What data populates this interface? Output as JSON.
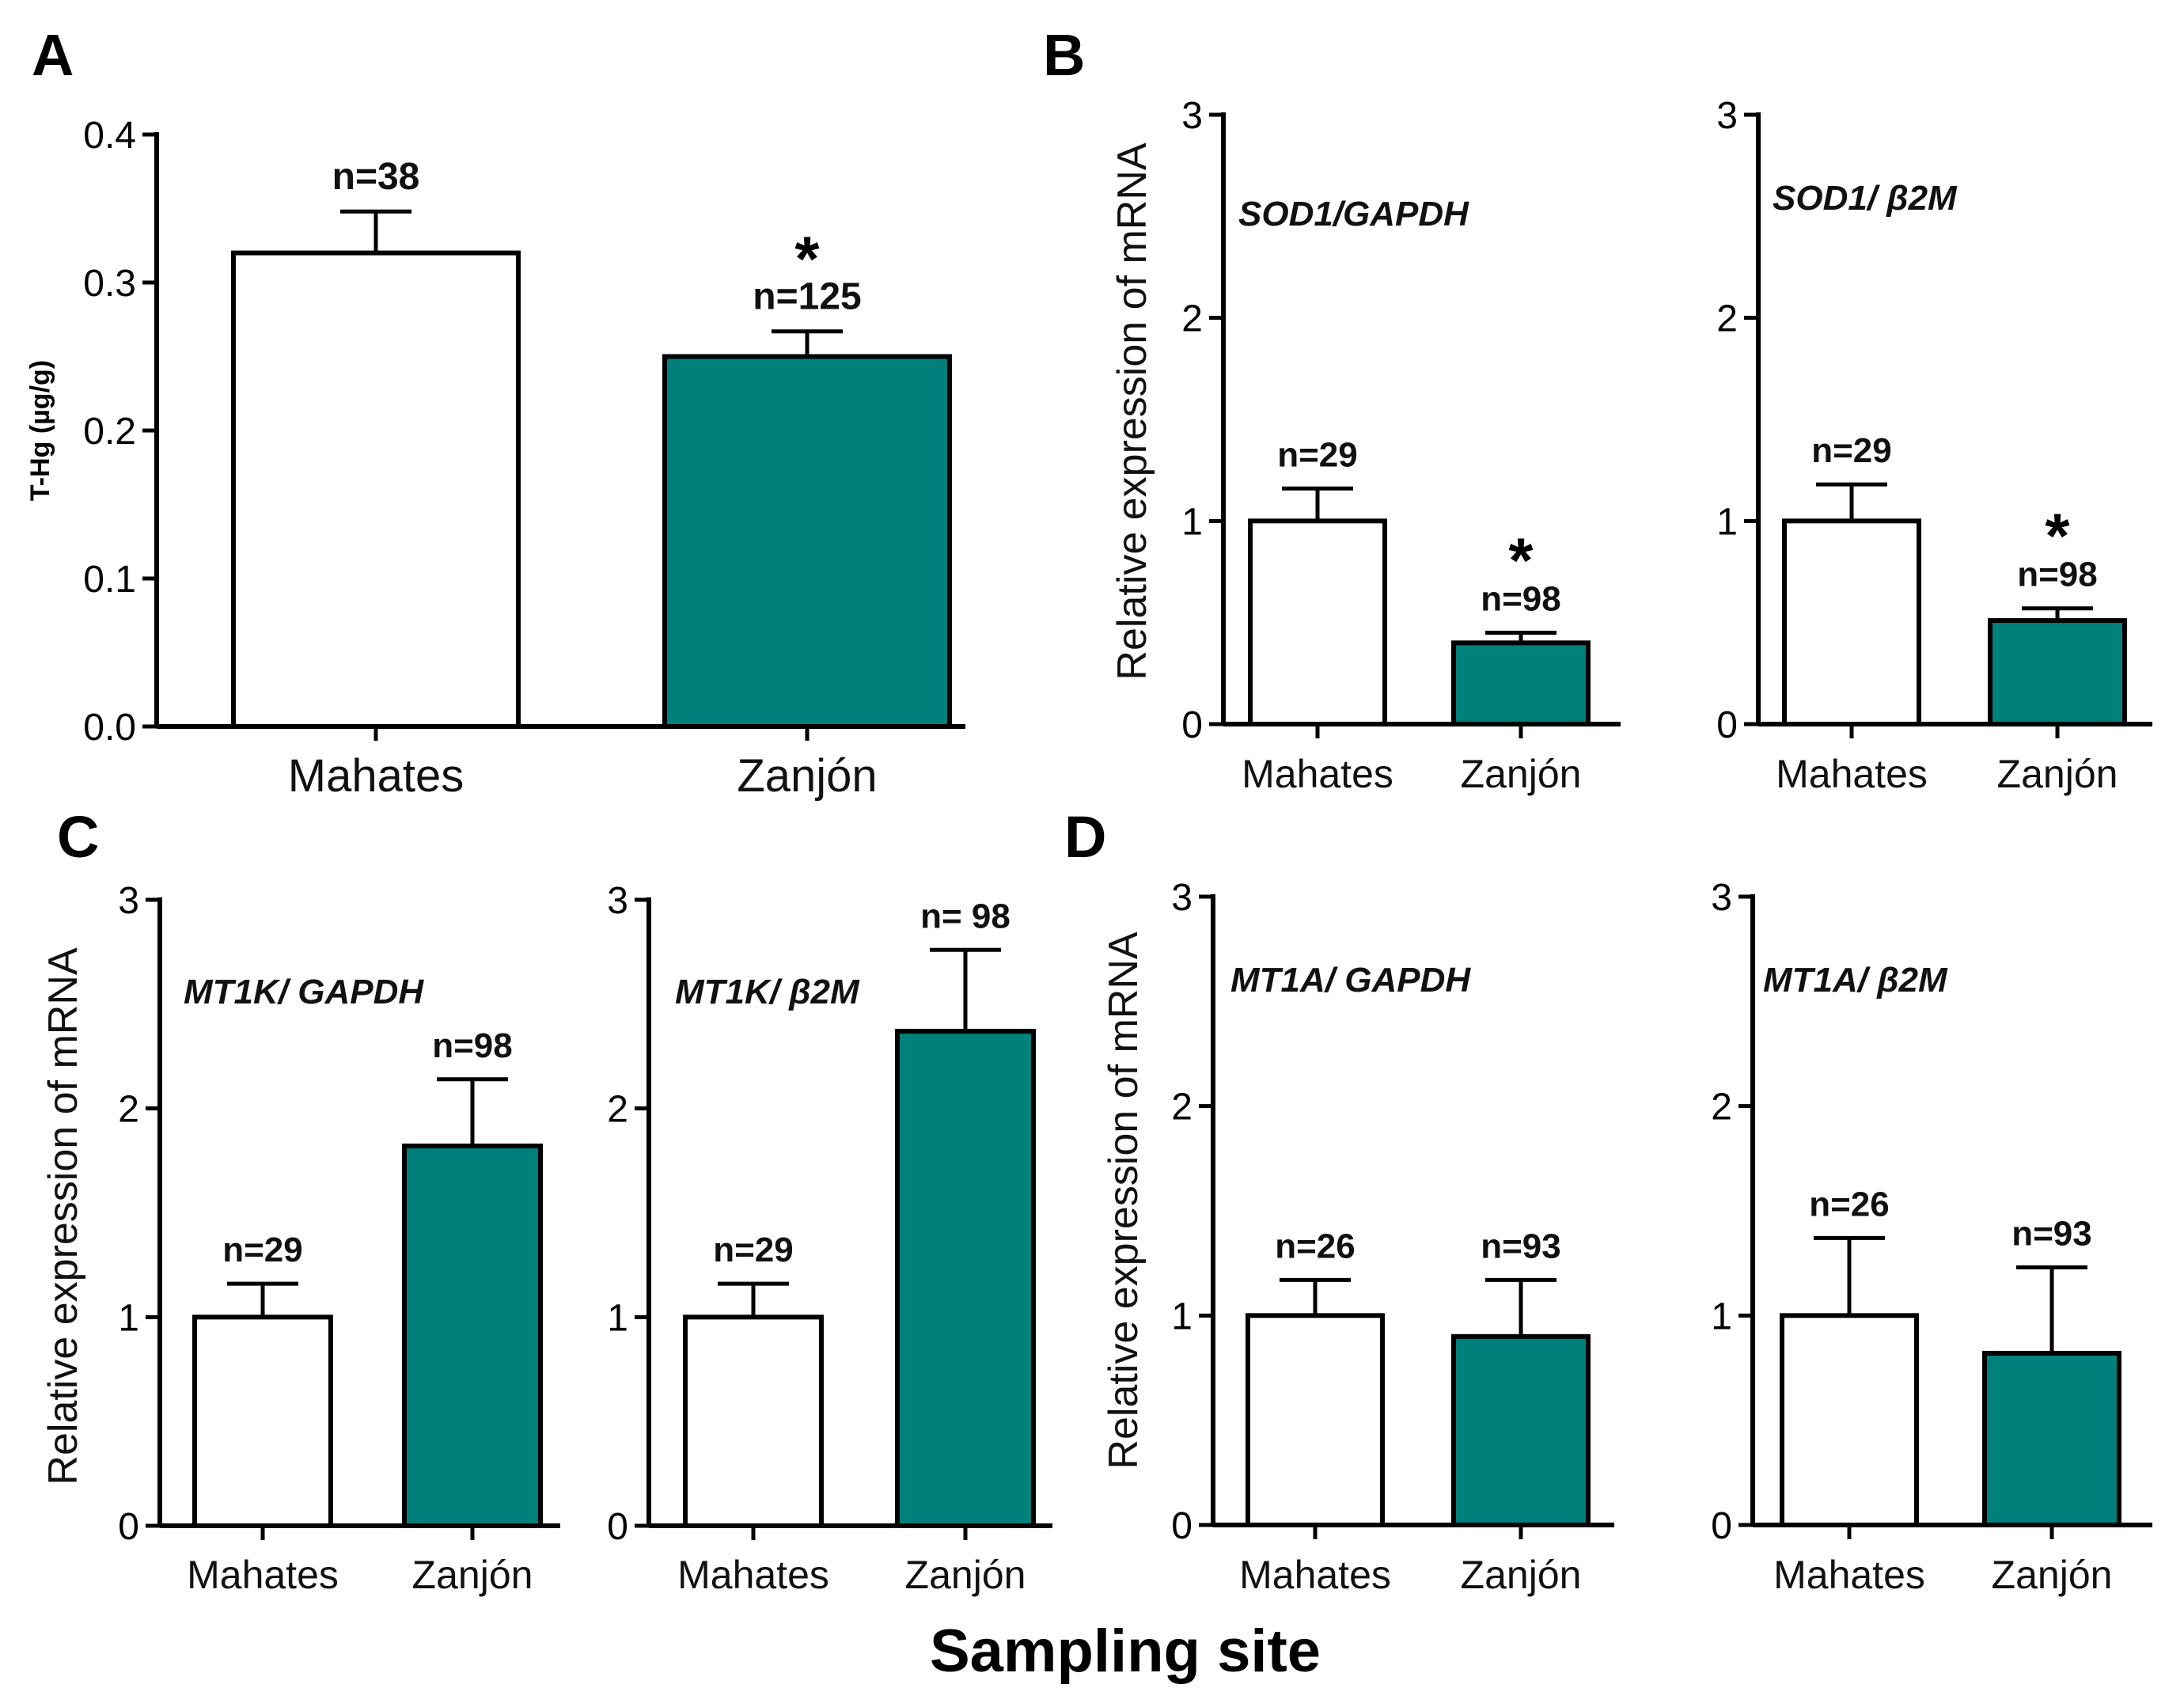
{
  "figure": {
    "xlabel": "Sampling site",
    "colors": {
      "site_1": "#ffffff",
      "site_2": "#00807a",
      "axis": "#000000"
    }
  },
  "chart_data": [
    {
      "panel": "A",
      "type": "bar",
      "title": "",
      "ylabel": "T-Hg (µg/g)",
      "categories": [
        "Mahates",
        "Zanjón"
      ],
      "values": [
        0.32,
        0.25
      ],
      "errors": [
        0.028,
        0.017
      ],
      "n": [
        "n=38",
        "n=125"
      ],
      "significance": [
        "",
        "*"
      ],
      "ylim": [
        0,
        0.4
      ],
      "yticks": [
        "0.0",
        "0.1",
        "0.2",
        "0.3",
        "0.4"
      ]
    },
    {
      "panel": "B",
      "type": "bar",
      "title": "SOD1/GAPDH",
      "ylabel": "Relative expression of mRNA",
      "categories": [
        "Mahates",
        "Zanjón"
      ],
      "values": [
        1.0,
        0.4
      ],
      "errors": [
        0.16,
        0.05
      ],
      "n": [
        "n=29",
        "n=98"
      ],
      "significance": [
        "",
        "*"
      ],
      "ylim": [
        0,
        3
      ],
      "yticks": [
        "0",
        "1",
        "2",
        "3"
      ]
    },
    {
      "panel": "",
      "type": "bar",
      "title": "SOD1/ β2M",
      "ylabel": "",
      "categories": [
        "Mahates",
        "Zanjón"
      ],
      "values": [
        1.0,
        0.51
      ],
      "errors": [
        0.18,
        0.06
      ],
      "n": [
        "n=29",
        "n=98"
      ],
      "significance": [
        "",
        "*"
      ],
      "ylim": [
        0,
        3
      ],
      "yticks": [
        "0",
        "1",
        "2",
        "3"
      ]
    },
    {
      "panel": "C",
      "type": "bar",
      "title": "MT1K/ GAPDH",
      "ylabel": "Relative expression of mRNA",
      "categories": [
        "Mahates",
        "Zanjón"
      ],
      "values": [
        1.0,
        1.82
      ],
      "errors": [
        0.16,
        0.32
      ],
      "n": [
        "n=29",
        "n=98"
      ],
      "significance": [
        "",
        ""
      ],
      "ylim": [
        0,
        3
      ],
      "yticks": [
        "0",
        "1",
        "2",
        "3"
      ]
    },
    {
      "panel": "",
      "type": "bar",
      "title": "MT1K/ β2M",
      "ylabel": "",
      "categories": [
        "Mahates",
        "Zanjón"
      ],
      "values": [
        1.0,
        2.37
      ],
      "errors": [
        0.16,
        0.39
      ],
      "n": [
        "n=29",
        "n= 98"
      ],
      "significance": [
        "",
        ""
      ],
      "ylim": [
        0,
        3
      ],
      "yticks": [
        "0",
        "1",
        "2",
        "3"
      ]
    },
    {
      "panel": "D",
      "type": "bar",
      "title": "MT1A/ GAPDH",
      "ylabel": "Relative expression of mRNA",
      "categories": [
        "Mahates",
        "Zanjón"
      ],
      "values": [
        1.0,
        0.9
      ],
      "errors": [
        0.17,
        0.27
      ],
      "n": [
        "n=26",
        "n=93"
      ],
      "significance": [
        "",
        ""
      ],
      "ylim": [
        0,
        3
      ],
      "yticks": [
        "0",
        "1",
        "2",
        "3"
      ]
    },
    {
      "panel": "",
      "type": "bar",
      "title": "MT1A/ β2M",
      "ylabel": "",
      "categories": [
        "Mahates",
        "Zanjón"
      ],
      "values": [
        1.0,
        0.82
      ],
      "errors": [
        0.37,
        0.41
      ],
      "n": [
        "n=26",
        "n=93"
      ],
      "significance": [
        "",
        ""
      ],
      "ylim": [
        0,
        3
      ],
      "yticks": [
        "0",
        "1",
        "2",
        "3"
      ]
    }
  ]
}
